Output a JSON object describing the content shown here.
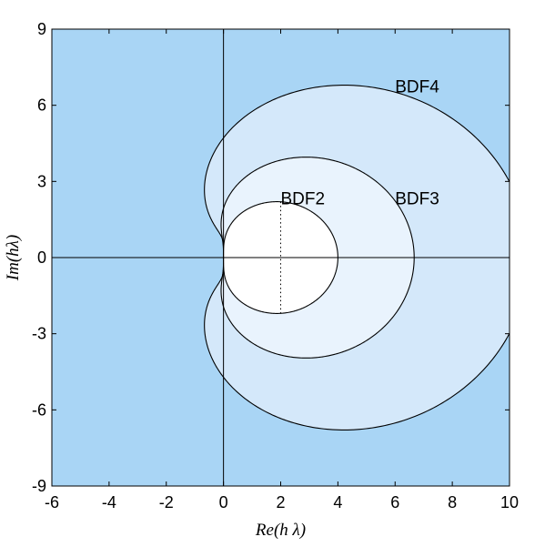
{
  "chart_data": {
    "type": "line",
    "xlabel": "Re(h λ)",
    "ylabel": "Im(hλ)",
    "xlim": [
      -6,
      10
    ],
    "ylim": [
      -9,
      9
    ],
    "xticks": [
      -6,
      -4,
      -2,
      0,
      2,
      4,
      6,
      8,
      10
    ],
    "yticks": [
      -9,
      -6,
      -3,
      0,
      3,
      6,
      9
    ],
    "xtick_labels": [
      "-6",
      "-4",
      "-2",
      "0",
      "2",
      "4",
      "6",
      "8",
      "10"
    ],
    "ytick_labels": [
      "-9",
      "-6",
      "-3",
      "0",
      "3",
      "6",
      "9"
    ],
    "grid": false,
    "background_color": "#a9d5f5",
    "series": [
      {
        "name": "BDF4",
        "order": 4,
        "fill": "#d4e8fa",
        "label_at": [
          6.0,
          6.5
        ]
      },
      {
        "name": "BDF3",
        "order": 3,
        "fill": "#e9f3fd",
        "label_at": [
          6.0,
          2.1
        ]
      },
      {
        "name": "BDF2",
        "order": 2,
        "fill": "#ffffff",
        "label_at": [
          2.0,
          2.1
        ]
      }
    ],
    "annotations": {
      "bdf2_dotted_segment": {
        "x": 2,
        "y": [
          -2.2,
          2.2
        ]
      }
    }
  }
}
